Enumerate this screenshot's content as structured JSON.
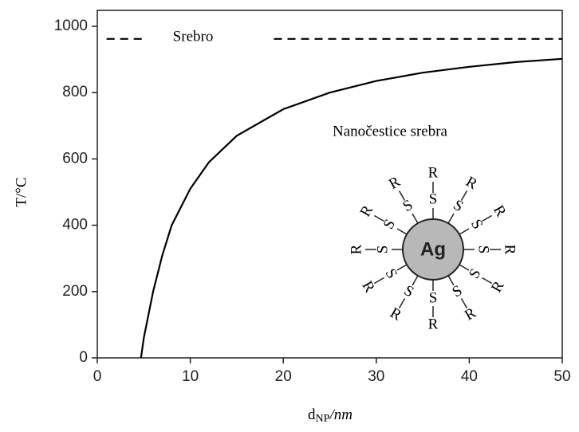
{
  "chart_data": {
    "type": "line",
    "ylabel": "T/°C",
    "xlabel": "d",
    "xlabel_sub": "NP",
    "xlabel_suffix": "/nm",
    "xlim": [
      0,
      50
    ],
    "xticks": [
      0,
      10,
      20,
      30,
      40,
      50
    ],
    "ylim": [
      0,
      1000
    ],
    "yticks": [
      0,
      200,
      400,
      600,
      800,
      1000
    ],
    "series": [
      {
        "color": "#000000",
        "dashed": false,
        "x": [
          4.7,
          5,
          6,
          7,
          8,
          10,
          12,
          15,
          20,
          25,
          30,
          35,
          40,
          45,
          50
        ],
        "values": [
          0,
          60,
          200,
          310,
          400,
          510,
          590,
          670,
          750,
          800,
          835,
          860,
          878,
          892,
          902
        ]
      },
      {
        "color": "#000000",
        "dashed": true,
        "x": [
          1,
          5,
          12,
          19,
          50
        ],
        "values": [
          962,
          962,
          null,
          962,
          962
        ]
      }
    ],
    "annotations": {
      "bulk": "Srebro",
      "nano": "Nanočestice srebra",
      "particle": "Ag",
      "sulfur": "S",
      "ligand": "R"
    }
  }
}
